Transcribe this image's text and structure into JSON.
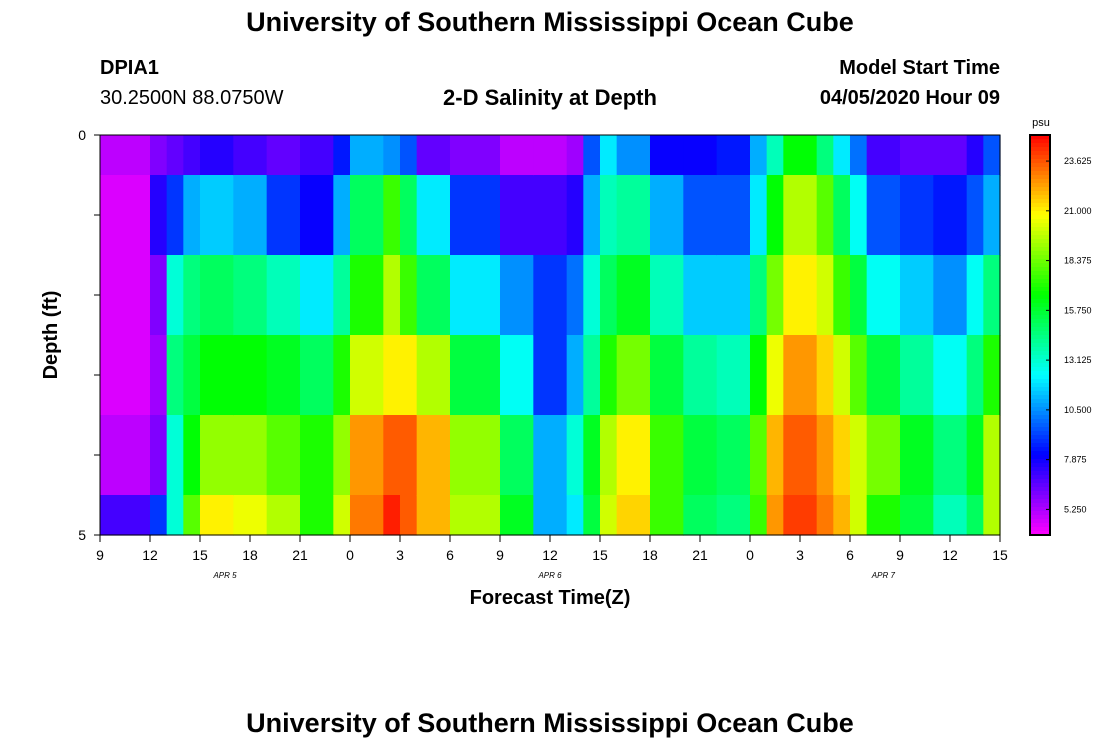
{
  "header": {
    "title": "University of Southern Mississippi Ocean Cube",
    "station_id": "DPIA1",
    "coordinates": "30.2500N 88.0750W",
    "plot_title": "2-D Salinity at Depth",
    "model_start_label": "Model Start Time",
    "model_start_value": "04/05/2020 Hour 09"
  },
  "footer": {
    "title": "University of Southern Mississippi Ocean Cube"
  },
  "chart_data": {
    "type": "heatmap",
    "title": "2-D Salinity at Depth",
    "xlabel": "Forecast Time(Z)",
    "ylabel": "Depth (ft)",
    "x_tick_labels": [
      "9",
      "12",
      "15",
      "18",
      "21",
      "0",
      "3",
      "6",
      "9",
      "12",
      "15",
      "18",
      "21",
      "0",
      "3",
      "6",
      "9",
      "12",
      "15"
    ],
    "x_hours_from_start": [
      0,
      3,
      6,
      9,
      12,
      15,
      18,
      21,
      24,
      27,
      30,
      33,
      36,
      39,
      42,
      45,
      48,
      51,
      54
    ],
    "date_labels": [
      {
        "label": "APR 5",
        "hour": 7.5
      },
      {
        "label": "APR 6",
        "hour": 27
      },
      {
        "label": "APR 7",
        "hour": 47
      }
    ],
    "y_tick_labels": [
      "0",
      "5"
    ],
    "ylim": [
      0,
      5
    ],
    "colorbar": {
      "unit": "psu",
      "ticks": [
        "23.625",
        "21.000",
        "18.375",
        "15.750",
        "13.125",
        "10.500",
        "7.875",
        "5.250"
      ],
      "range": [
        3.9,
        25.0
      ]
    },
    "depth_bins": [
      0,
      1,
      2,
      3,
      4,
      5
    ],
    "columns": [
      {
        "t0": 0,
        "t1": 3,
        "values": [
          5,
          4.5,
          4.5,
          4.5,
          5,
          7
        ]
      },
      {
        "t0": 3,
        "t1": 4,
        "values": [
          6,
          7.5,
          6,
          5.5,
          6,
          9
        ]
      },
      {
        "t0": 4,
        "t1": 5,
        "values": [
          6.5,
          9,
          13,
          14.5,
          13,
          13
        ]
      },
      {
        "t0": 5,
        "t1": 6,
        "values": [
          7,
          11,
          14.5,
          15.5,
          16.5,
          18
        ]
      },
      {
        "t0": 6,
        "t1": 8,
        "values": [
          7.5,
          11.5,
          15,
          16.5,
          19,
          21
        ]
      },
      {
        "t0": 8,
        "t1": 10,
        "values": [
          7,
          11,
          14.5,
          16.5,
          19,
          20.5
        ]
      },
      {
        "t0": 10,
        "t1": 12,
        "values": [
          6.5,
          9,
          13.5,
          16,
          18,
          19.5
        ]
      },
      {
        "t0": 12,
        "t1": 14,
        "values": [
          7,
          8,
          12,
          15,
          17,
          17
        ]
      },
      {
        "t0": 14,
        "t1": 15,
        "values": [
          8.5,
          11,
          14,
          17,
          19,
          20
        ]
      },
      {
        "t0": 15,
        "t1": 17,
        "values": [
          11,
          15,
          17,
          20,
          22.5,
          23
        ]
      },
      {
        "t0": 17,
        "t1": 18,
        "values": [
          10.5,
          17.5,
          19.5,
          21,
          23.5,
          24.5
        ]
      },
      {
        "t0": 18,
        "t1": 19,
        "values": [
          9.5,
          15,
          17.5,
          21,
          23.5,
          23.5
        ]
      },
      {
        "t0": 19,
        "t1": 21,
        "values": [
          6.5,
          12,
          15,
          19.5,
          22,
          22
        ]
      },
      {
        "t0": 21,
        "t1": 24,
        "values": [
          6,
          9,
          12,
          15.5,
          19,
          19.5
        ]
      },
      {
        "t0": 24,
        "t1": 26,
        "values": [
          5,
          7,
          10.5,
          12.5,
          15,
          16
        ]
      },
      {
        "t0": 26,
        "t1": 28,
        "values": [
          5,
          7,
          9,
          9,
          11,
          11
        ]
      },
      {
        "t0": 28,
        "t1": 29,
        "values": [
          5.5,
          7.5,
          10,
          11,
          13,
          12
        ]
      },
      {
        "t0": 29,
        "t1": 30,
        "values": [
          9.5,
          11,
          13,
          14,
          16,
          15.5
        ]
      },
      {
        "t0": 30,
        "t1": 31,
        "values": [
          12,
          13.5,
          15,
          17,
          19.5,
          20
        ]
      },
      {
        "t0": 31,
        "t1": 33,
        "values": [
          10.5,
          14,
          16,
          18.5,
          21,
          21.5
        ]
      },
      {
        "t0": 33,
        "t1": 35,
        "values": [
          8,
          11,
          13.5,
          15.5,
          17.5,
          17.5
        ]
      },
      {
        "t0": 35,
        "t1": 37,
        "values": [
          8,
          9.5,
          11.5,
          14,
          15.5,
          15
        ]
      },
      {
        "t0": 37,
        "t1": 39,
        "values": [
          8.5,
          9.5,
          11.5,
          13.5,
          15,
          14.5
        ]
      },
      {
        "t0": 39,
        "t1": 40,
        "values": [
          11,
          12,
          14.5,
          16.5,
          18,
          17.5
        ]
      },
      {
        "t0": 40,
        "t1": 41,
        "values": [
          13.5,
          16.5,
          18.5,
          20.5,
          22,
          22.5
        ]
      },
      {
        "t0": 41,
        "t1": 43,
        "values": [
          16.5,
          19.5,
          21,
          22.5,
          23.5,
          24
        ]
      },
      {
        "t0": 43,
        "t1": 44,
        "values": [
          14.5,
          18,
          20,
          21.5,
          22.5,
          23
        ]
      },
      {
        "t0": 44,
        "t1": 45,
        "values": [
          12,
          15,
          17.5,
          20,
          21.5,
          22
        ]
      },
      {
        "t0": 45,
        "t1": 46,
        "values": [
          10,
          12.5,
          15.5,
          18,
          20,
          20
        ]
      },
      {
        "t0": 46,
        "t1": 48,
        "values": [
          7,
          9.5,
          12.5,
          15.5,
          18.5,
          17
        ]
      },
      {
        "t0": 48,
        "t1": 50,
        "values": [
          6.5,
          9,
          11.5,
          14,
          16,
          15.5
        ]
      },
      {
        "t0": 50,
        "t1": 52,
        "values": [
          6.5,
          8.5,
          10.5,
          12.5,
          14.5,
          13.5
        ]
      },
      {
        "t0": 52,
        "t1": 53,
        "values": [
          7.5,
          9.5,
          12.5,
          14.5,
          16,
          15
        ]
      },
      {
        "t0": 53,
        "t1": 54,
        "values": [
          9.5,
          11,
          14.5,
          17,
          19.5,
          19.5
        ]
      }
    ]
  }
}
